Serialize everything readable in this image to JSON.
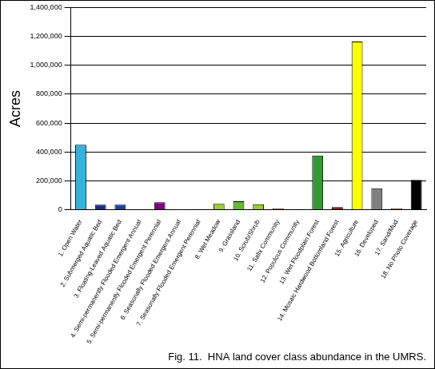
{
  "chart_data": {
    "type": "bar",
    "title": "Fig. 11.  HNA land cover class abundance in the UMRS.",
    "y_label": "Acres",
    "categories": [
      "1. Open Water",
      "2. Submerged Aquatic Bed",
      "3. Floating-Leaved Aquatic Bed",
      "4. Semi-permanently Flooded Emergent Annual",
      "5. Semi-permanently Flooded Emergent Perennial",
      "6. Seasonally Flooded Emergent Annual",
      "7. Seasonally Flooded Emergent Perennial",
      "8. Wet Meadow",
      "9. Grassland",
      "10. Scrub/Shrub",
      "11. Salix Community",
      "12. Populous Community",
      "13. Wet Floodplain Forest",
      "14. Mosaic Hardwood Bottomland Forest",
      "15. Agriculture",
      "16. Developed",
      "17. Sand/Mud",
      "18. No Photo Coverage"
    ],
    "values": [
      450000,
      35000,
      35000,
      3000,
      52000,
      1000,
      5000,
      40000,
      58000,
      38000,
      8000,
      4000,
      375000,
      18000,
      1165000,
      148000,
      8000,
      207000
    ],
    "colors": [
      "#33B3DB",
      "#1C2A8C",
      "#1F3FAF",
      "#404040",
      "#800080",
      "#606060",
      "#707070",
      "#9ACD32",
      "#66BB33",
      "#99CC33",
      "#B05040",
      "#707070",
      "#339933",
      "#990000",
      "#FFFF00",
      "#808080",
      "#C04020",
      "#000000"
    ],
    "ylim": [
      0,
      1400000
    ],
    "yticks": [
      0,
      {
        "value": 200000,
        "label": "200,000"
      },
      {
        "value": 400000,
        "label": "400,000"
      },
      {
        "value": 600000,
        "label": "600,000"
      },
      {
        "value": 800000,
        "label": "800,000"
      },
      {
        "value": 1000000,
        "label": "1,000,000"
      },
      {
        "value": 1200000,
        "label": "1,200,000"
      },
      {
        "value": 1400000,
        "label": "1,400,000"
      }
    ],
    "grid": true
  }
}
